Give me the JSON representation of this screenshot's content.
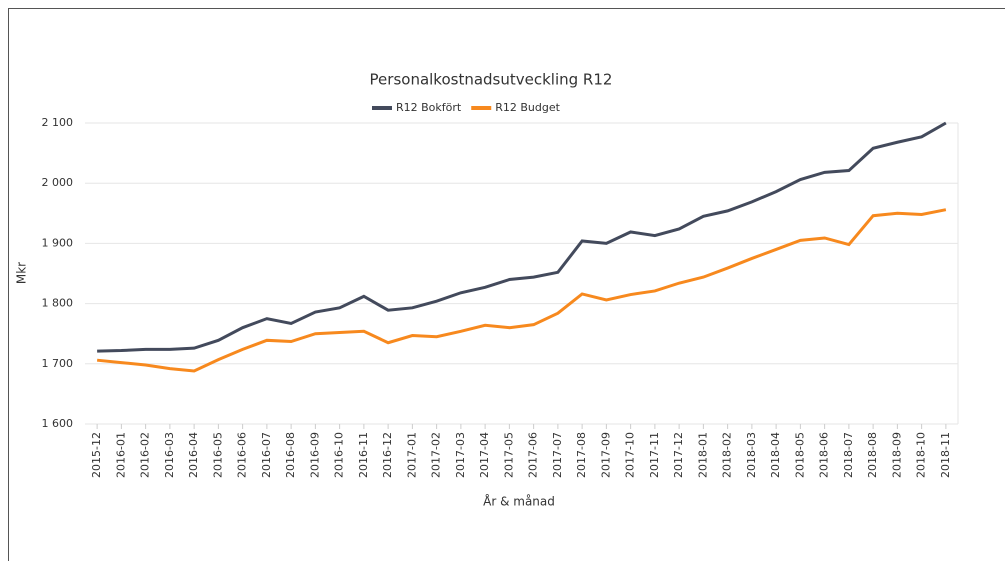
{
  "chart_data": {
    "type": "line",
    "title": "Personalkostnadsutveckling R12",
    "x_label": "År & månad",
    "y_label": "Mkr",
    "categories": [
      "2015-12",
      "2016-01",
      "2016-02",
      "2016-03",
      "2016-04",
      "2016-05",
      "2016-06",
      "2016-07",
      "2016-08",
      "2016-09",
      "2016-10",
      "2016-11",
      "2016-12",
      "2017-01",
      "2017-02",
      "2017-03",
      "2017-04",
      "2017-05",
      "2017-06",
      "2017-07",
      "2017-08",
      "2017-09",
      "2017-10",
      "2017-11",
      "2017-12",
      "2018-01",
      "2018-02",
      "2018-03",
      "2018-04",
      "2018-05",
      "2018-06",
      "2018-07",
      "2018-08",
      "2018-09",
      "2018-10",
      "2018-11"
    ],
    "series": [
      {
        "name": "R12 Bokfört",
        "color": "#434a5c",
        "values": [
          1721,
          1722,
          1724,
          1724,
          1726,
          1739,
          1760,
          1775,
          1767,
          1786,
          1793,
          1812,
          1789,
          1793,
          1804,
          1818,
          1827,
          1840,
          1844,
          1852,
          1904,
          1900,
          1919,
          1913,
          1924,
          1945,
          1954,
          1969,
          1986,
          2006,
          2018,
          2021,
          2058,
          2068,
          2077,
          2100
        ]
      },
      {
        "name": "R12 Budget",
        "color": "#f7891e",
        "values": [
          1706,
          1702,
          1698,
          1692,
          1688,
          1707,
          1724,
          1739,
          1737,
          1750,
          1752,
          1754,
          1735,
          1747,
          1745,
          1754,
          1764,
          1760,
          1765,
          1784,
          1816,
          1806,
          1815,
          1821,
          1834,
          1844,
          1859,
          1875,
          1890,
          1905,
          1909,
          1898,
          1946,
          1950,
          1948,
          1956
        ]
      }
    ],
    "ylim": [
      1600,
      2100
    ],
    "yticks": [
      {
        "value": 1600,
        "label": "1 600"
      },
      {
        "value": 1700,
        "label": "1 700"
      },
      {
        "value": 1800,
        "label": "1 800"
      },
      {
        "value": 1900,
        "label": "1 900"
      },
      {
        "value": 2000,
        "label": "2 000"
      },
      {
        "value": 2100,
        "label": "2 100"
      }
    ],
    "grid": true,
    "legend": "top"
  }
}
